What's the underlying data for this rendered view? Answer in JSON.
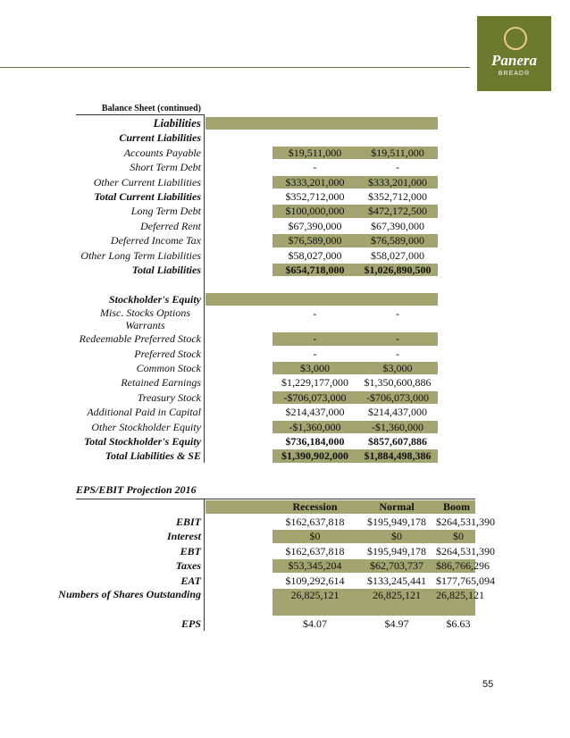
{
  "header": {
    "logo": {
      "name": "Panera",
      "tagline": "BREAD®"
    }
  },
  "balance_sheet": {
    "title": "Balance Sheet (continued)",
    "rows": [
      {
        "label": "Liabilities"
      },
      {
        "label": "Current Liabilities"
      },
      {
        "label": "Accounts Payable",
        "values": [
          "$19,511,000",
          "$19,511,000"
        ]
      },
      {
        "label": "Short Term Debt",
        "values": [
          "-",
          "-"
        ]
      },
      {
        "label": "Other Current Liabilities",
        "values": [
          "$333,201,000",
          "$333,201,000"
        ]
      },
      {
        "label": "Total Current Liabilities",
        "values": [
          "$352,712,000",
          "$352,712,000"
        ]
      },
      {
        "label": "Long Term Debt",
        "values": [
          "$100,000,000",
          "$472,172,500"
        ]
      },
      {
        "label": "Deferred Rent",
        "values": [
          "$67,390,000",
          "$67,390,000"
        ]
      },
      {
        "label": "Deferred Income Tax",
        "values": [
          "$76,589,000",
          "$76,589,000"
        ]
      },
      {
        "label": "Other Long Term Liabilities",
        "values": [
          "$58,027,000",
          "$58,027,000"
        ]
      },
      {
        "label": "Total Liabilities",
        "values": [
          "$654,718,000",
          "$1,026,890,500"
        ]
      },
      {
        "label": "Stockholder's Equity"
      },
      {
        "label": "Misc. Stocks Options Warrants",
        "values": [
          "-",
          "-"
        ]
      },
      {
        "label": "Redeemable Preferred Stock",
        "values": [
          "-",
          "-"
        ]
      },
      {
        "label": "Preferred Stock",
        "values": [
          "-",
          "-"
        ]
      },
      {
        "label": "Common Stock",
        "values": [
          "$3,000",
          "$3,000"
        ]
      },
      {
        "label": "Retained Earnings",
        "values": [
          "$1,229,177,000",
          "$1,350,600,886"
        ]
      },
      {
        "label": "Treasury Stock",
        "values": [
          "-$706,073,000",
          "-$706,073,000"
        ]
      },
      {
        "label": "Additional Paid in Capital",
        "values": [
          "$214,437,000",
          "$214,437,000"
        ]
      },
      {
        "label": "Other Stockholder Equity",
        "values": [
          "-$1,360,000",
          "-$1,360,000"
        ]
      },
      {
        "label": "Total Stockholder's Equity",
        "values": [
          "$736,184,000",
          "$857,607,886"
        ]
      },
      {
        "label": "Total Liabilities & SE",
        "values": [
          "$1,390,902,000",
          "$1,884,498,386"
        ]
      }
    ]
  },
  "eps": {
    "title": "EPS/EBIT Projection 2016",
    "columns": [
      "Recession",
      "Normal",
      "Boom"
    ],
    "rows": [
      {
        "label": "EBIT",
        "values": [
          "$162,637,818",
          "$195,949,178",
          "$264,531,390"
        ]
      },
      {
        "label": "Interest",
        "values": [
          "$0",
          "$0",
          "$0"
        ]
      },
      {
        "label": "EBT",
        "values": [
          "$162,637,818",
          "$195,949,178",
          "$264,531,390"
        ]
      },
      {
        "label": "Taxes",
        "values": [
          "$53,345,204",
          "$62,703,737",
          "$86,766,296"
        ]
      },
      {
        "label": "EAT",
        "values": [
          "$109,292,614",
          "$133,245,441",
          "$177,765,094"
        ]
      },
      {
        "label": "Numbers of Shares Outstanding",
        "values": [
          "26,825,121",
          "26,825,121",
          "26,825,121"
        ]
      },
      {
        "label": "EPS",
        "values": [
          "$4.07",
          "$4.97",
          "$6.63"
        ]
      }
    ]
  },
  "page_number": "55"
}
